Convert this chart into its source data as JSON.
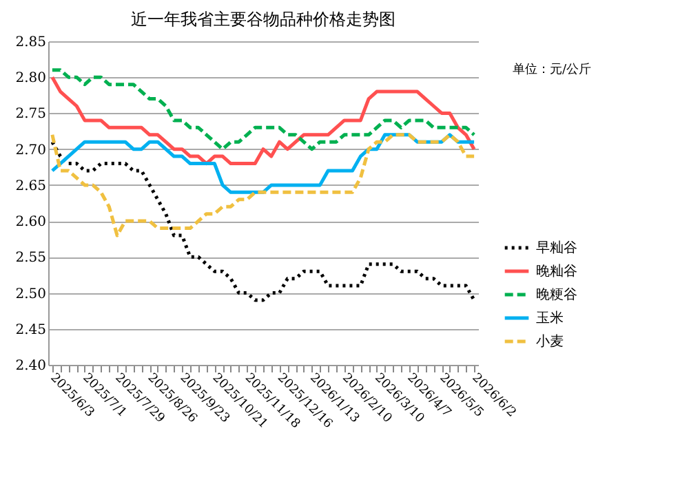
{
  "chart_data": {
    "type": "line",
    "title": "近一年我省主要谷物品种价格走势图",
    "annotations": [
      "单位：元/公斤"
    ],
    "categories": [
      "2025/6/3",
      null,
      null,
      null,
      "2025/7/1",
      null,
      null,
      null,
      "2025/7/29",
      null,
      null,
      null,
      "2025/8/26",
      null,
      null,
      null,
      "2025/9/23",
      null,
      null,
      null,
      "2025/10/21",
      null,
      null,
      null,
      "2025/11/18",
      null,
      null,
      null,
      "2025/12/16",
      null,
      null,
      null,
      "2026/1/13",
      null,
      null,
      null,
      "2026/2/10",
      null,
      null,
      null,
      "2026/3/10",
      null,
      null,
      null,
      "2026/4/7",
      null,
      null,
      null,
      "2026/5/5",
      null,
      null,
      null,
      "2026/6/2"
    ],
    "ylim": [
      2.4,
      2.85
    ],
    "yticks": [
      {
        "value": 2.4,
        "label": "2.40"
      },
      2.45,
      {
        "value": 2.5,
        "label": "2.50"
      },
      2.55,
      {
        "value": 2.6,
        "label": "2.60"
      },
      2.65,
      {
        "value": 2.7,
        "label": "2.70"
      },
      2.75,
      {
        "value": 2.8,
        "label": "2.80"
      },
      2.85
    ],
    "grid": "y",
    "legend": "right",
    "marker": "none",
    "series": [
      {
        "name": "早籼谷",
        "color": "#000000",
        "line_style": "dotted",
        "values": [
          2.71,
          2.69,
          2.68,
          2.68,
          2.67,
          2.67,
          2.68,
          2.68,
          2.68,
          2.68,
          2.67,
          2.67,
          2.65,
          2.63,
          2.61,
          2.58,
          2.58,
          2.55,
          2.55,
          2.54,
          2.53,
          2.53,
          2.52,
          2.5,
          2.5,
          2.49,
          2.49,
          2.5,
          2.5,
          2.52,
          2.52,
          2.53,
          2.53,
          2.53,
          2.51,
          2.51,
          2.51,
          2.51,
          2.51,
          2.54,
          2.54,
          2.54,
          2.54,
          2.53,
          2.53,
          2.53,
          2.52,
          2.52,
          2.51,
          2.51,
          2.51,
          2.51,
          2.49
        ]
      },
      {
        "name": "晚籼谷",
        "color": "#ff5050",
        "line_style": "solid",
        "values": [
          2.8,
          2.78,
          2.77,
          2.76,
          2.74,
          2.74,
          2.74,
          2.73,
          2.73,
          2.73,
          2.73,
          2.73,
          2.72,
          2.72,
          2.71,
          2.7,
          2.7,
          2.69,
          2.69,
          2.68,
          2.69,
          2.69,
          2.68,
          2.68,
          2.68,
          2.68,
          2.7,
          2.69,
          2.71,
          2.7,
          2.71,
          2.72,
          2.72,
          2.72,
          2.72,
          2.73,
          2.74,
          2.74,
          2.74,
          2.77,
          2.78,
          2.78,
          2.78,
          2.78,
          2.78,
          2.78,
          2.77,
          2.76,
          2.75,
          2.75,
          2.73,
          2.72,
          2.7
        ]
      },
      {
        "name": "晚粳谷",
        "color": "#00b050",
        "line_style": "dashed",
        "values": [
          2.81,
          2.81,
          2.8,
          2.8,
          2.79,
          2.8,
          2.8,
          2.79,
          2.79,
          2.79,
          2.79,
          2.78,
          2.77,
          2.77,
          2.76,
          2.74,
          2.74,
          2.73,
          2.73,
          2.72,
          2.71,
          2.7,
          2.71,
          2.71,
          2.72,
          2.73,
          2.73,
          2.73,
          2.73,
          2.72,
          2.72,
          2.71,
          2.7,
          2.71,
          2.71,
          2.71,
          2.72,
          2.72,
          2.72,
          2.72,
          2.73,
          2.74,
          2.74,
          2.73,
          2.74,
          2.74,
          2.74,
          2.73,
          2.73,
          2.73,
          2.73,
          2.73,
          2.72
        ]
      },
      {
        "name": "玉米",
        "color": "#00b0f0",
        "line_style": "solid",
        "values": [
          2.67,
          2.68,
          2.69,
          2.7,
          2.71,
          2.71,
          2.71,
          2.71,
          2.71,
          2.71,
          2.7,
          2.7,
          2.71,
          2.71,
          2.7,
          2.69,
          2.69,
          2.68,
          2.68,
          2.68,
          2.68,
          2.65,
          2.64,
          2.64,
          2.64,
          2.64,
          2.64,
          2.65,
          2.65,
          2.65,
          2.65,
          2.65,
          2.65,
          2.65,
          2.67,
          2.67,
          2.67,
          2.67,
          2.69,
          2.7,
          2.7,
          2.72,
          2.72,
          2.72,
          2.72,
          2.71,
          2.71,
          2.71,
          2.71,
          2.72,
          2.71,
          2.71,
          2.71
        ]
      },
      {
        "name": "小麦",
        "color": "#f0c040",
        "line_style": "dashed",
        "values": [
          2.72,
          2.67,
          2.67,
          2.66,
          2.65,
          2.65,
          2.64,
          2.62,
          2.58,
          2.6,
          2.6,
          2.6,
          2.6,
          2.59,
          2.59,
          2.59,
          2.59,
          2.59,
          2.6,
          2.61,
          2.61,
          2.62,
          2.62,
          2.63,
          2.63,
          2.64,
          2.64,
          2.64,
          2.64,
          2.64,
          2.64,
          2.64,
          2.64,
          2.64,
          2.64,
          2.64,
          2.64,
          2.64,
          2.66,
          2.7,
          2.71,
          2.71,
          2.72,
          2.72,
          2.72,
          2.71,
          2.71,
          2.71,
          2.71,
          2.72,
          2.71,
          2.69,
          2.69
        ]
      }
    ]
  }
}
